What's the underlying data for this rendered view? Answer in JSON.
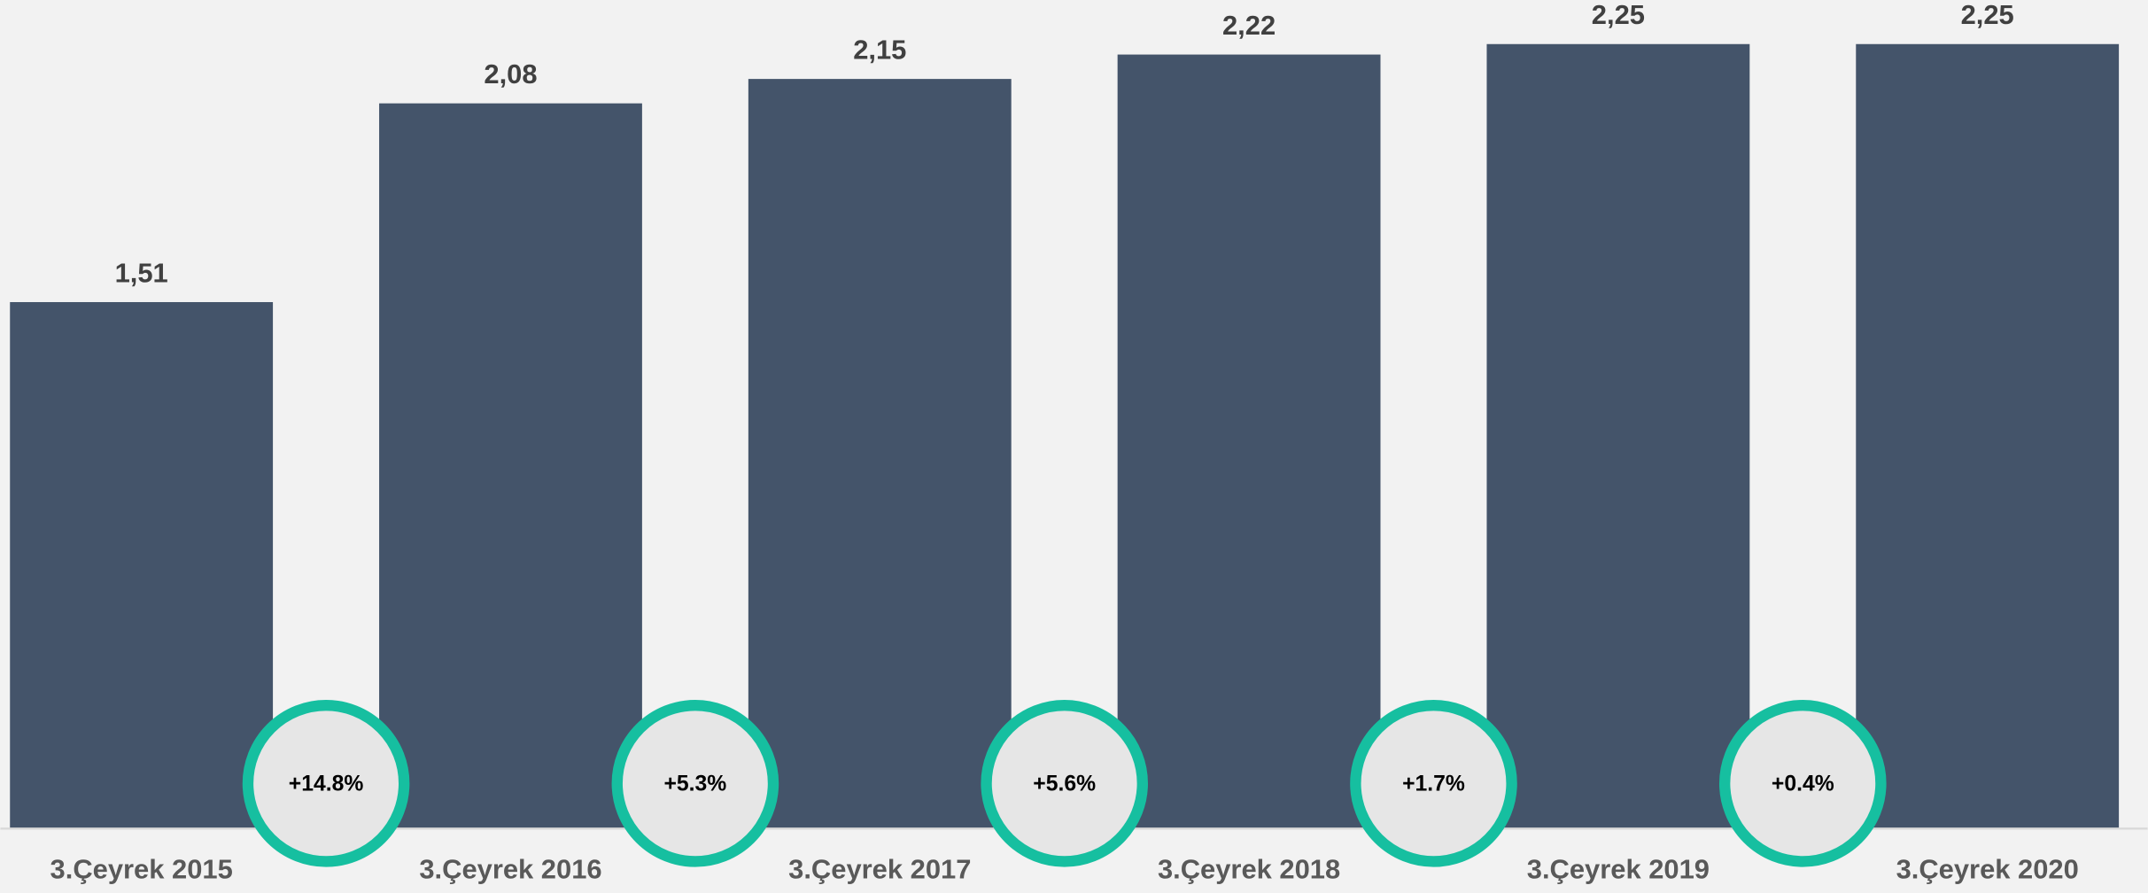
{
  "chart_data": {
    "type": "bar",
    "categories": [
      "3.Çeyrek 2015",
      "3.Çeyrek 2016",
      "3.Çeyrek 2017",
      "3.Çeyrek 2018",
      "3.Çeyrek 2019",
      "3.Çeyrek 2020"
    ],
    "values": [
      1.51,
      2.08,
      2.15,
      2.22,
      2.25,
      2.25
    ],
    "value_labels": [
      "1,51",
      "2,08",
      "2,15",
      "2,22",
      "2,25",
      "2,25"
    ],
    "color": "#44546a",
    "ylim": [
      0,
      2.4
    ],
    "annotations": [
      "+14.8%",
      "+5.3%",
      "+5.6%",
      "+1.7%",
      "+0.4%"
    ]
  }
}
